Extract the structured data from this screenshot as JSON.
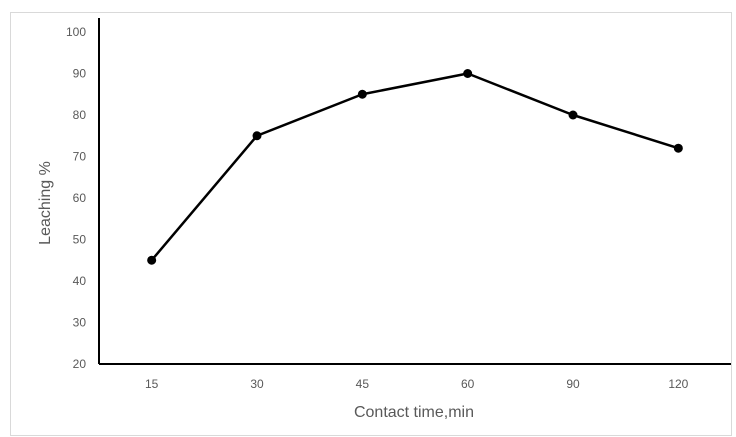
{
  "chart_data": {
    "type": "line",
    "categories": [
      "15",
      "30",
      "45",
      "60",
      "90",
      "120"
    ],
    "series": [
      {
        "values": [
          45,
          75,
          85,
          90,
          80,
          72
        ]
      }
    ],
    "title": "",
    "xlabel": "Contact time,min",
    "ylabel": "Leaching %",
    "ylim": [
      20,
      100
    ],
    "yticks": [
      20,
      30,
      40,
      50,
      60,
      70,
      80,
      90,
      100
    ],
    "grid": false,
    "legend": "none",
    "colors": {
      "line": "#000000",
      "marker": "#000000",
      "axis": "#000000",
      "text": "#595959",
      "frame": "#d9d9d9"
    }
  }
}
